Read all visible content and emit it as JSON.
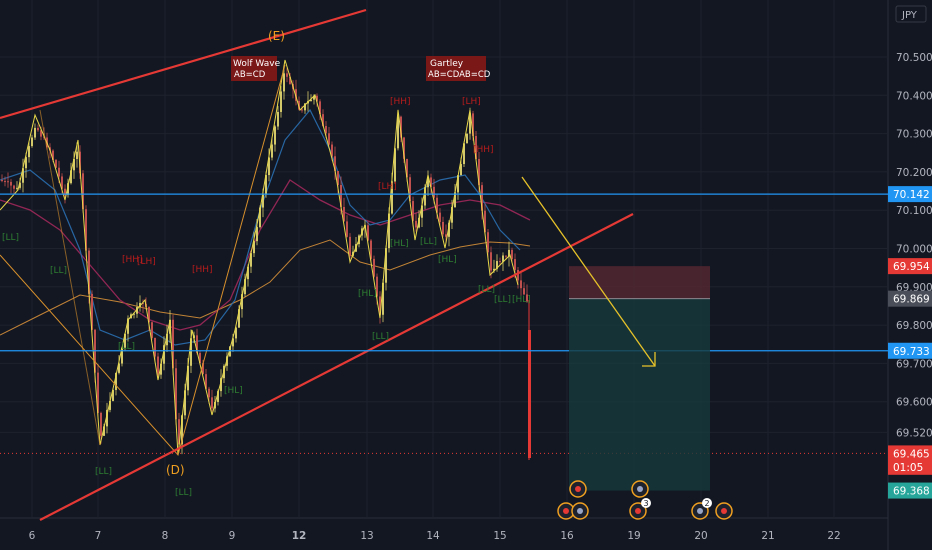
{
  "currency_label": "JPY",
  "chart_data": {
    "type": "candlestick",
    "y_axis": {
      "ticks": [
        "70.500",
        "70.400",
        "70.300",
        "70.200",
        "70.100",
        "70.000",
        "69.900",
        "69.800",
        "69.700",
        "69.600",
        "69.520"
      ],
      "tick_values": [
        70.5,
        70.4,
        70.3,
        70.2,
        70.1,
        70.0,
        69.9,
        69.8,
        69.7,
        69.6,
        69.52
      ],
      "range": [
        69.32,
        70.61
      ]
    },
    "x_axis": {
      "ticks": [
        "6",
        "7",
        "8",
        "9",
        "12",
        "13",
        "14",
        "15",
        "16",
        "19",
        "20",
        "21",
        "22"
      ]
    },
    "price_badges": [
      {
        "text": "70.142",
        "value": 70.142,
        "color": "#2196f3"
      },
      {
        "text": "69.954",
        "value": 69.954,
        "color": "#e53935"
      },
      {
        "text": "69.869",
        "value": 69.869,
        "color": "#4a4e58"
      },
      {
        "text": "69.733",
        "value": 69.733,
        "color": "#2196f3"
      },
      {
        "text": "69.465",
        "value": 69.465,
        "color": "#e53935"
      },
      {
        "text": "01:05",
        "value": 69.43,
        "color": "#e53935"
      },
      {
        "text": "69.368",
        "value": 69.368,
        "color": "#26a69a"
      }
    ],
    "horizontal_levels": [
      70.142,
      69.733
    ],
    "current_price": 69.465,
    "position": {
      "entry": 69.869,
      "stop": 69.954,
      "target": 69.368
    },
    "patterns": [
      {
        "title": "Wolf Wave",
        "subtitle": "AB=CD"
      },
      {
        "title": "Gartley",
        "subtitle": "AB=CDAB=CD"
      }
    ],
    "point_labels": [
      "(E)",
      "(D)"
    ],
    "swing_labels_low": [
      "[LL]",
      "[LL]",
      "[LL]",
      "[LL]",
      "[HL]",
      "[LL]",
      "[HL]",
      "[LL]",
      "[HL]",
      "[LL]",
      "[HL]",
      "[LL]",
      "[HL]",
      "[LL]"
    ],
    "swing_labels_high": [
      "[HH]",
      "[LH]",
      "[HH]",
      "[LH]",
      "[HH]",
      "[LH]",
      "[HH]"
    ],
    "event_markers": [
      {
        "x_tick": "16"
      },
      {
        "x_tick": "19"
      },
      {
        "x_tick": "19",
        "count": "3"
      },
      {
        "x_tick": "20",
        "count": "2"
      }
    ]
  }
}
